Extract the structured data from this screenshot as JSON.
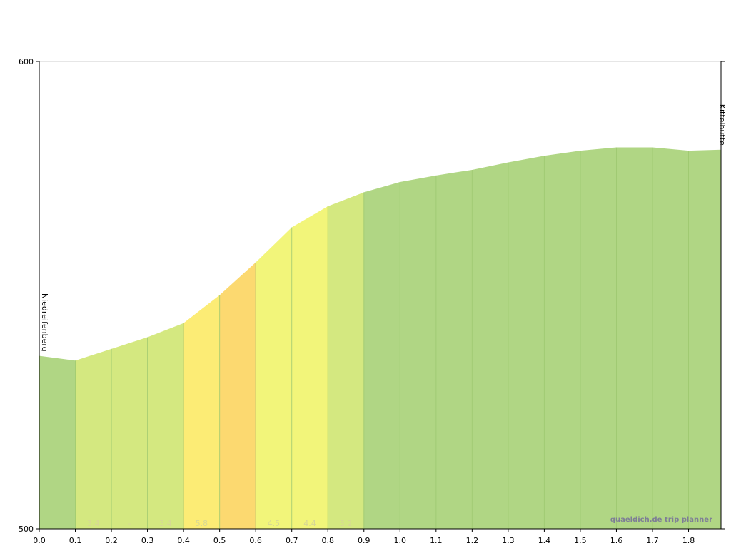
{
  "chart_data": {
    "type": "area",
    "x": [
      0.0,
      0.1,
      0.2,
      0.3,
      0.4,
      0.5,
      0.6,
      0.7,
      0.8,
      0.9,
      1.0,
      1.1,
      1.2,
      1.3,
      1.4,
      1.5,
      1.6,
      1.7,
      1.8,
      1.89
    ],
    "y": [
      537,
      536,
      538.5,
      541,
      544,
      550,
      557,
      564.5,
      569,
      572,
      574.2,
      575.6,
      576.8,
      578.4,
      579.8,
      580.9,
      581.6,
      581.6,
      580.9,
      581.1
    ],
    "xlim": [
      0,
      1.89
    ],
    "ylim": [
      500,
      600
    ],
    "x_ticks": [
      "0.0",
      "0.1",
      "0.2",
      "0.3",
      "0.4",
      "0.5",
      "0.6",
      "0.7",
      "0.8",
      "0.9",
      "1.0",
      "1.1",
      "1.2",
      "1.3",
      "1.4",
      "1.5",
      "1.6",
      "1.7",
      "1.8"
    ],
    "y_ticks": [
      "500",
      "600"
    ],
    "segment_labels": [
      "",
      "3.4",
      "-",
      "3.4",
      "5.8",
      "",
      "4.5",
      "4.4",
      "3.2",
      "",
      "",
      "",
      "",
      "",
      "",
      "",
      "",
      "",
      ""
    ],
    "segment_colors": [
      "#b0d684",
      "#d4e880",
      "#d4e880",
      "#d4e880",
      "#fcec75",
      "#fcd970",
      "#f2f57a",
      "#f2f57a",
      "#d4e880",
      "#b0d684",
      "#b0d684",
      "#b0d684",
      "#b0d684",
      "#b0d684",
      "#b0d684",
      "#b0d684",
      "#b0d684",
      "#b0d684",
      "#b0d684"
    ],
    "places": [
      {
        "name": "Niedreifenberg",
        "x": 0.0,
        "y": 537
      },
      {
        "name": "Kittelhütte",
        "x": 1.89,
        "y": 581.1
      }
    ],
    "grid": false
  },
  "watermark": "quaeldich.de trip planner"
}
